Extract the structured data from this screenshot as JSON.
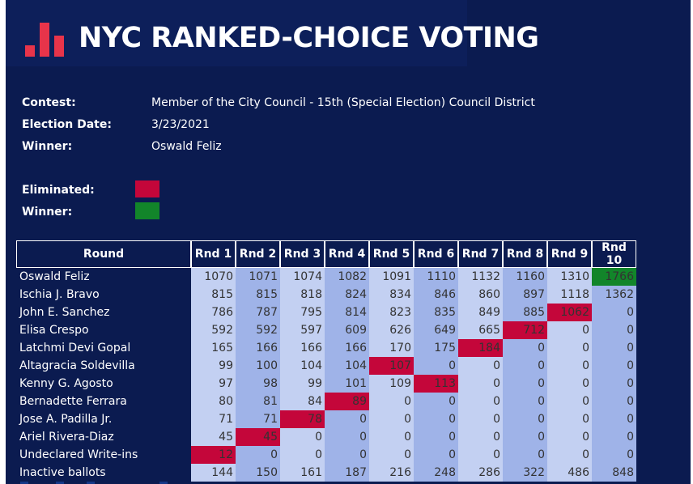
{
  "header": {
    "title": "NYC RANKED-CHOICE VOTING"
  },
  "info": {
    "contest_label": "Contest:",
    "contest_value": "Member of the City Council - 15th (Special Election) Council District",
    "date_label": "Election Date:",
    "date_value": "3/23/2021",
    "winner_label": "Winner:",
    "winner_value": "Oswald Feliz"
  },
  "legend": {
    "eliminated_label": "Eliminated:",
    "eliminated_color": "#c4063a",
    "winner_label": "Winner:",
    "winner_color": "#12852a"
  },
  "table": {
    "header_first": "Round",
    "rounds": [
      "Rnd 1",
      "Rnd 2",
      "Rnd 3",
      "Rnd 4",
      "Rnd 5",
      "Rnd 6",
      "Rnd 7",
      "Rnd 8",
      "Rnd 9",
      "Rnd 10"
    ],
    "rows": [
      {
        "name": "Oswald Feliz",
        "values": [
          "1070",
          "1071",
          "1074",
          "1082",
          "1091",
          "1110",
          "1132",
          "1160",
          "1310",
          "1766"
        ],
        "status": [
          "",
          "",
          "",
          "",
          "",
          "",
          "",
          "",
          "",
          "win"
        ]
      },
      {
        "name": "Ischia J. Bravo",
        "values": [
          "815",
          "815",
          "818",
          "824",
          "834",
          "846",
          "860",
          "897",
          "1118",
          "1362"
        ],
        "status": [
          "",
          "",
          "",
          "",
          "",
          "",
          "",
          "",
          "",
          ""
        ]
      },
      {
        "name": "John E. Sanchez",
        "values": [
          "786",
          "787",
          "795",
          "814",
          "823",
          "835",
          "849",
          "885",
          "1062",
          "0"
        ],
        "status": [
          "",
          "",
          "",
          "",
          "",
          "",
          "",
          "",
          "elim",
          ""
        ]
      },
      {
        "name": "Elisa Crespo",
        "values": [
          "592",
          "592",
          "597",
          "609",
          "626",
          "649",
          "665",
          "712",
          "0",
          "0"
        ],
        "status": [
          "",
          "",
          "",
          "",
          "",
          "",
          "",
          "elim",
          "",
          ""
        ]
      },
      {
        "name": "Latchmi Devi Gopal",
        "values": [
          "165",
          "166",
          "166",
          "166",
          "170",
          "175",
          "184",
          "0",
          "0",
          "0"
        ],
        "status": [
          "",
          "",
          "",
          "",
          "",
          "",
          "elim",
          "",
          "",
          ""
        ]
      },
      {
        "name": "Altagracia Soldevilla",
        "values": [
          "99",
          "100",
          "104",
          "104",
          "107",
          "0",
          "0",
          "0",
          "0",
          "0"
        ],
        "status": [
          "",
          "",
          "",
          "",
          "elim",
          "",
          "",
          "",
          "",
          ""
        ]
      },
      {
        "name": "Kenny G. Agosto",
        "values": [
          "97",
          "98",
          "99",
          "101",
          "109",
          "113",
          "0",
          "0",
          "0",
          "0"
        ],
        "status": [
          "",
          "",
          "",
          "",
          "",
          "elim",
          "",
          "",
          "",
          ""
        ]
      },
      {
        "name": "Bernadette Ferrara",
        "values": [
          "80",
          "81",
          "84",
          "89",
          "0",
          "0",
          "0",
          "0",
          "0",
          "0"
        ],
        "status": [
          "",
          "",
          "",
          "elim",
          "",
          "",
          "",
          "",
          "",
          ""
        ]
      },
      {
        "name": "Jose A. Padilla Jr.",
        "values": [
          "71",
          "71",
          "78",
          "0",
          "0",
          "0",
          "0",
          "0",
          "0",
          "0"
        ],
        "status": [
          "",
          "",
          "elim",
          "",
          "",
          "",
          "",
          "",
          "",
          ""
        ]
      },
      {
        "name": "Ariel Rivera-Diaz",
        "values": [
          "45",
          "45",
          "0",
          "0",
          "0",
          "0",
          "0",
          "0",
          "0",
          "0"
        ],
        "status": [
          "",
          "elim",
          "",
          "",
          "",
          "",
          "",
          "",
          "",
          ""
        ]
      },
      {
        "name": "Undeclared Write-ins",
        "values": [
          "12",
          "0",
          "0",
          "0",
          "0",
          "0",
          "0",
          "0",
          "0",
          "0"
        ],
        "status": [
          "elim",
          "",
          "",
          "",
          "",
          "",
          "",
          "",
          "",
          ""
        ]
      },
      {
        "name": "Inactive ballots",
        "values": [
          "144",
          "150",
          "161",
          "187",
          "216",
          "248",
          "286",
          "322",
          "486",
          "848"
        ],
        "status": [
          "",
          "",
          "",
          "",
          "",
          "",
          "",
          "",
          "",
          ""
        ]
      }
    ]
  }
}
